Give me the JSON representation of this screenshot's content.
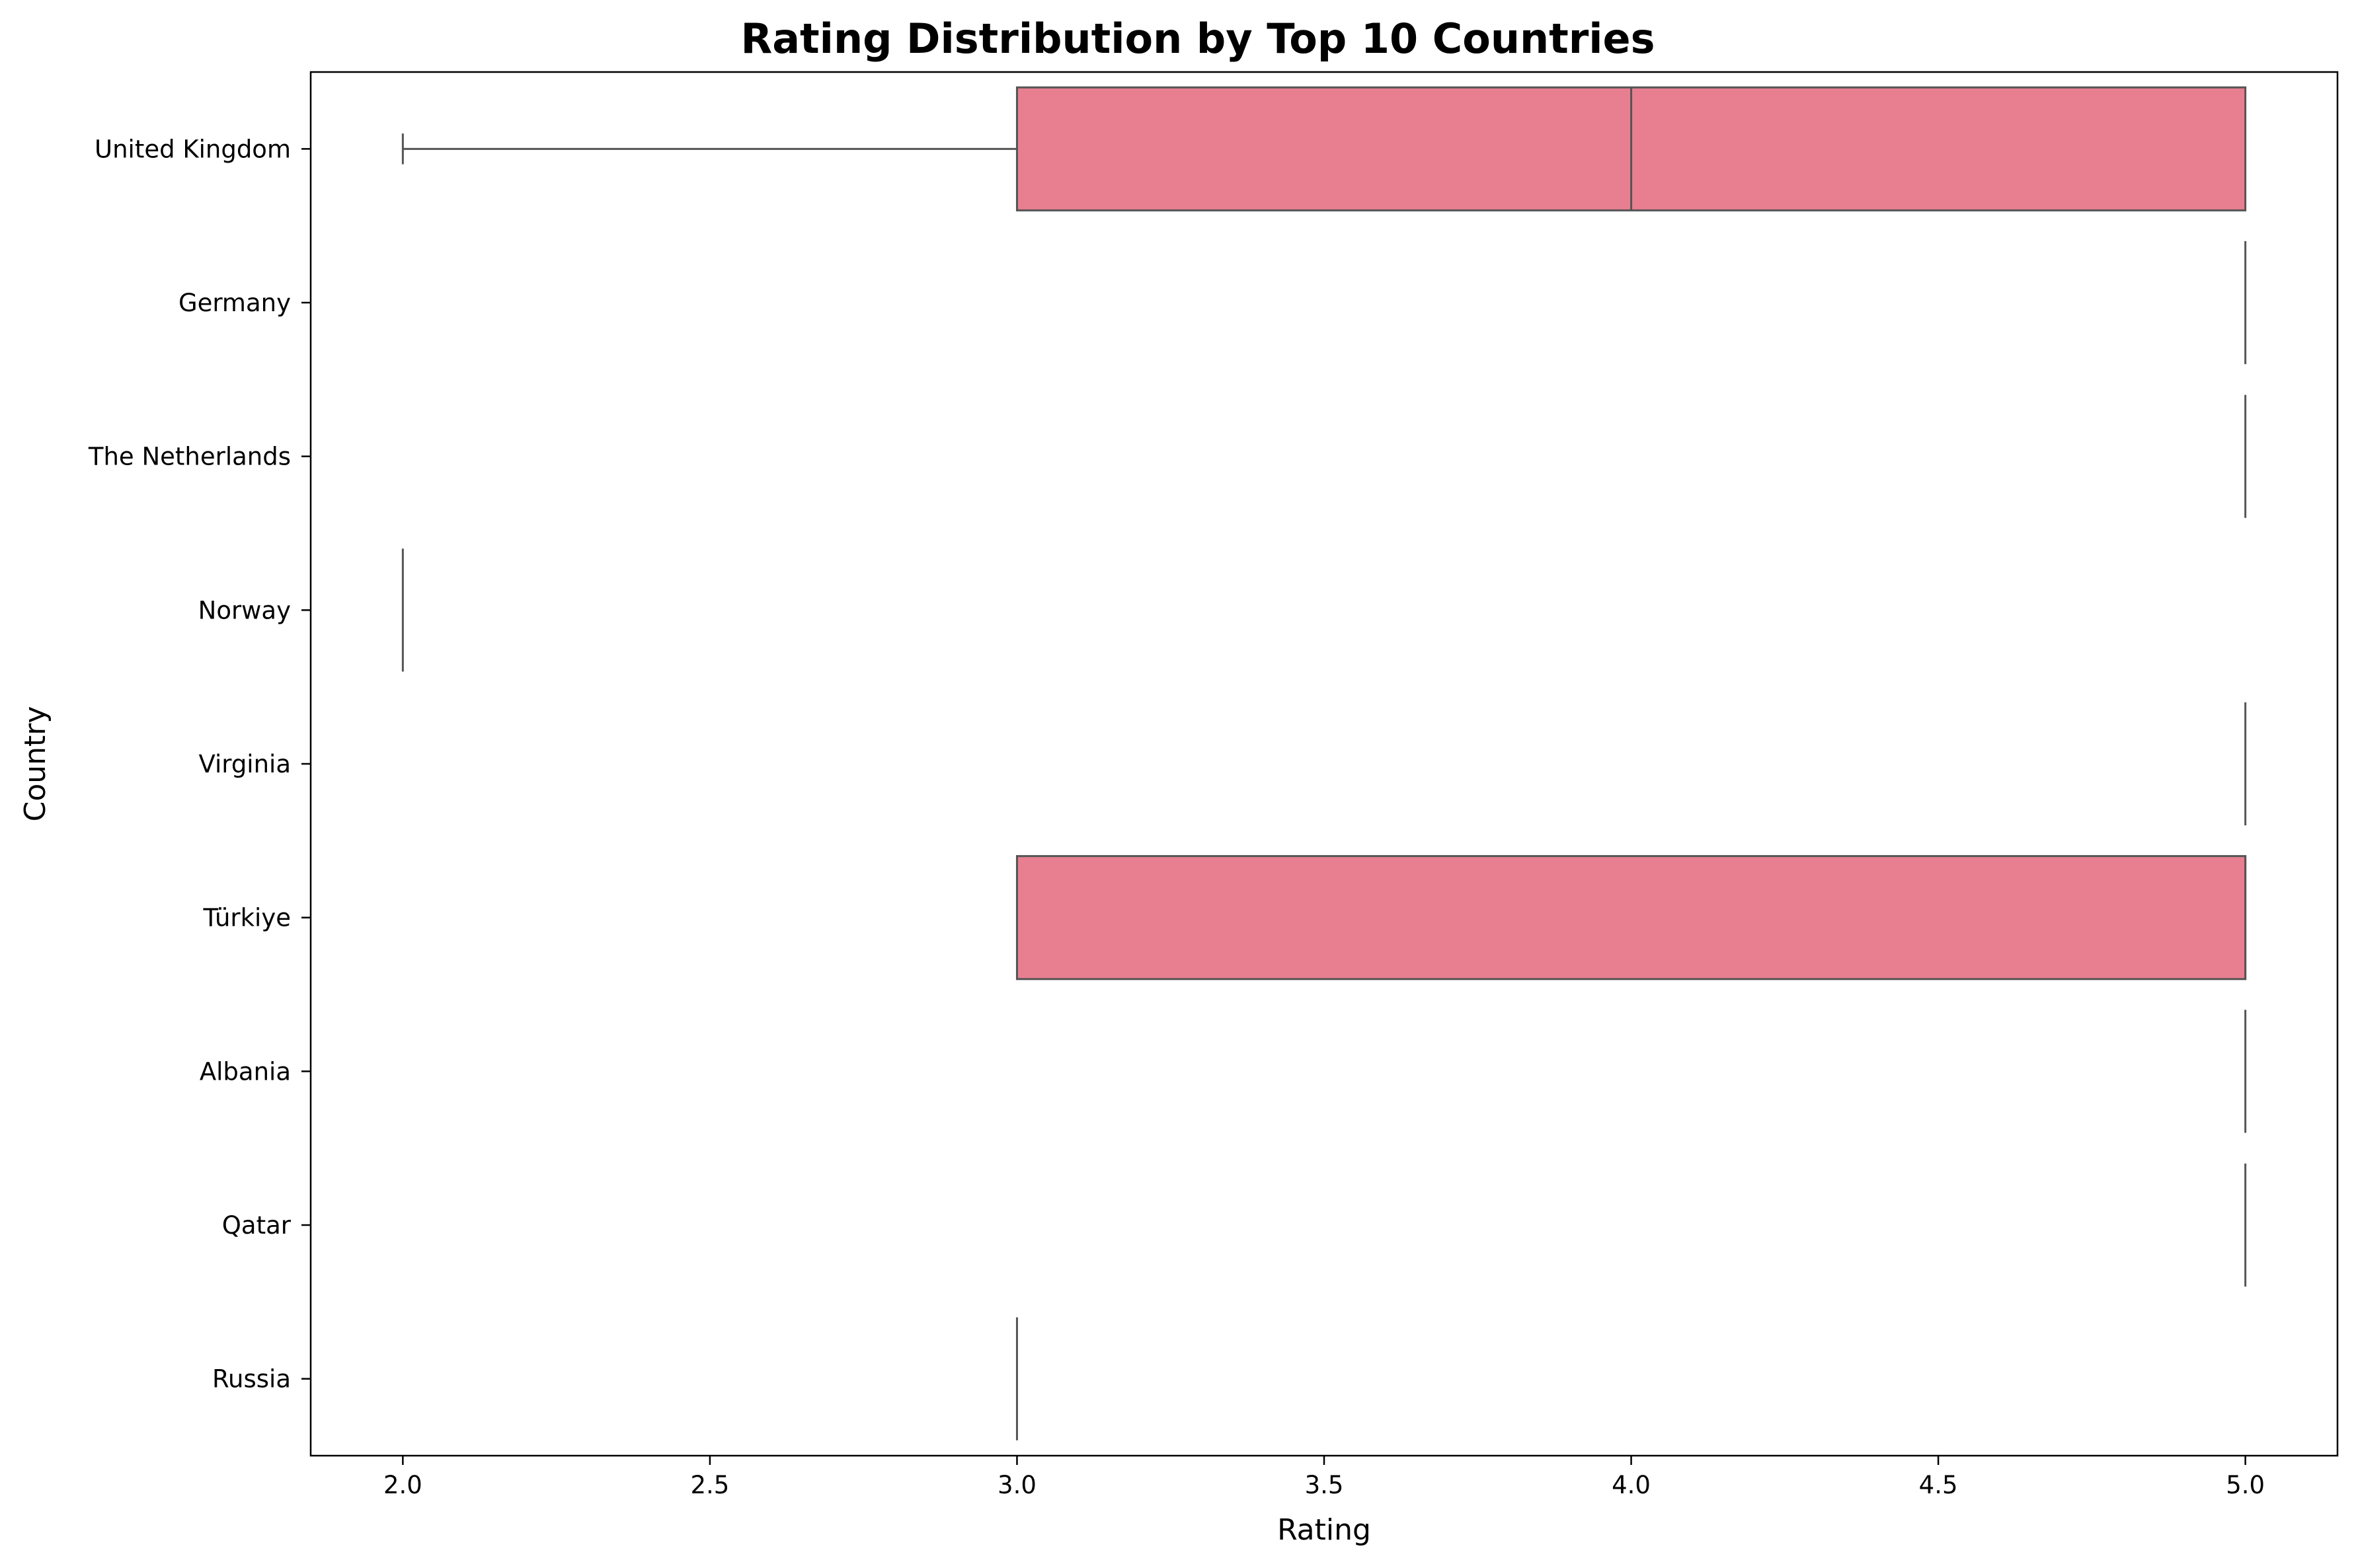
{
  "chart_data": {
    "type": "box",
    "title": "Rating Distribution by Top 10 Countries",
    "xlabel": "Rating",
    "ylabel": "Country",
    "xlim": [
      1.85,
      5.15
    ],
    "xticks": [
      2.0,
      2.5,
      3.0,
      3.5,
      4.0,
      4.5,
      5.0
    ],
    "xtick_labels": [
      "2.0",
      "2.5",
      "3.0",
      "3.5",
      "4.0",
      "4.5",
      "5.0"
    ],
    "categories": [
      "United Kingdom",
      "Germany",
      "The Netherlands",
      "Norway",
      "Virginia",
      "Türkiye",
      "Albania",
      "Qatar",
      "Russia"
    ],
    "box_color": "#e77f91",
    "line_color": "#555555",
    "grid": false,
    "boxes": [
      {
        "category": "United Kingdom",
        "whisker_low": 2,
        "q1": 3,
        "median": 4,
        "q3": 5,
        "whisker_high": 5
      },
      {
        "category": "Germany",
        "whisker_low": 5,
        "q1": 5,
        "median": 5,
        "q3": 5,
        "whisker_high": 5
      },
      {
        "category": "The Netherlands",
        "whisker_low": 5,
        "q1": 5,
        "median": 5,
        "q3": 5,
        "whisker_high": 5
      },
      {
        "category": "Norway",
        "whisker_low": 2,
        "q1": 2,
        "median": 2,
        "q3": 2,
        "whisker_high": 2
      },
      {
        "category": "Virginia",
        "whisker_low": 5,
        "q1": 5,
        "median": 5,
        "q3": 5,
        "whisker_high": 5
      },
      {
        "category": "Türkiye",
        "whisker_low": 3,
        "q1": 3,
        "median": 5,
        "q3": 5,
        "whisker_high": 5
      },
      {
        "category": "Albania",
        "whisker_low": 5,
        "q1": 5,
        "median": 5,
        "q3": 5,
        "whisker_high": 5
      },
      {
        "category": "Qatar",
        "whisker_low": 5,
        "q1": 5,
        "median": 5,
        "q3": 5,
        "whisker_high": 5
      },
      {
        "category": "Russia",
        "whisker_low": 3,
        "q1": 3,
        "median": 3,
        "q3": 3,
        "whisker_high": 3
      }
    ]
  }
}
